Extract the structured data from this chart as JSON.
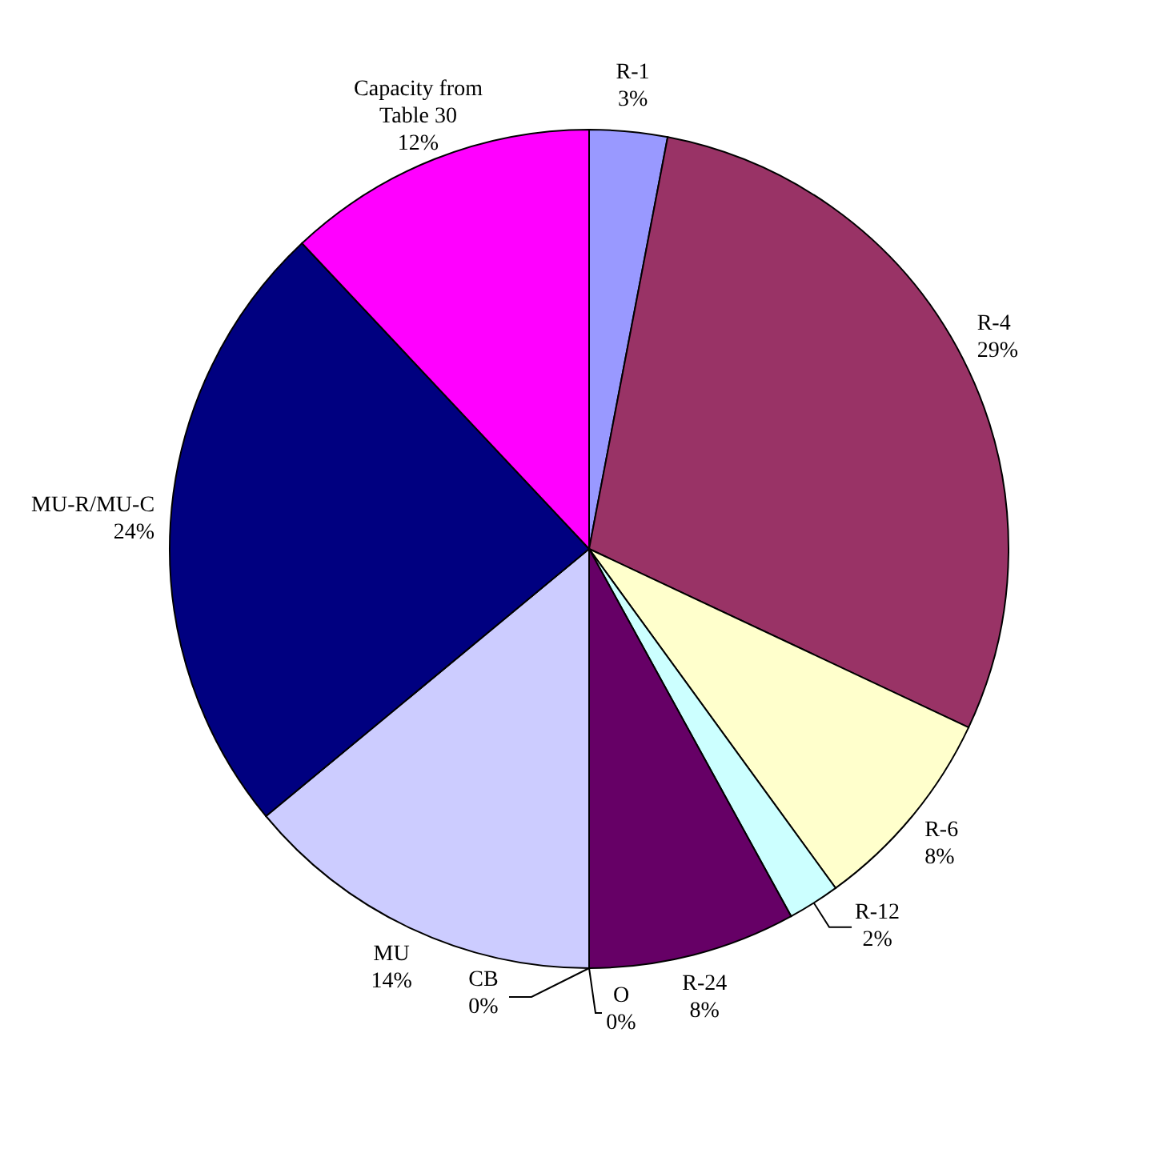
{
  "chart_data": {
    "type": "pie",
    "categories": [
      "R-1",
      "R-4",
      "R-6",
      "R-12",
      "R-24",
      "O",
      "CB",
      "MU",
      "MU-R/MU-C",
      "Capacity from Table 30"
    ],
    "values": [
      3,
      29,
      8,
      2,
      8,
      0,
      0,
      14,
      24,
      12
    ],
    "value_labels": [
      "3%",
      "29%",
      "8%",
      "2%",
      "8%",
      "0%",
      "0%",
      "14%",
      "24%",
      "12%"
    ],
    "colors": [
      "#9999ff",
      "#993366",
      "#ffffcc",
      "#ccffff",
      "#660066",
      "#ff8080",
      "#0066cc",
      "#ccccff",
      "#000080",
      "#ff00ff"
    ]
  }
}
